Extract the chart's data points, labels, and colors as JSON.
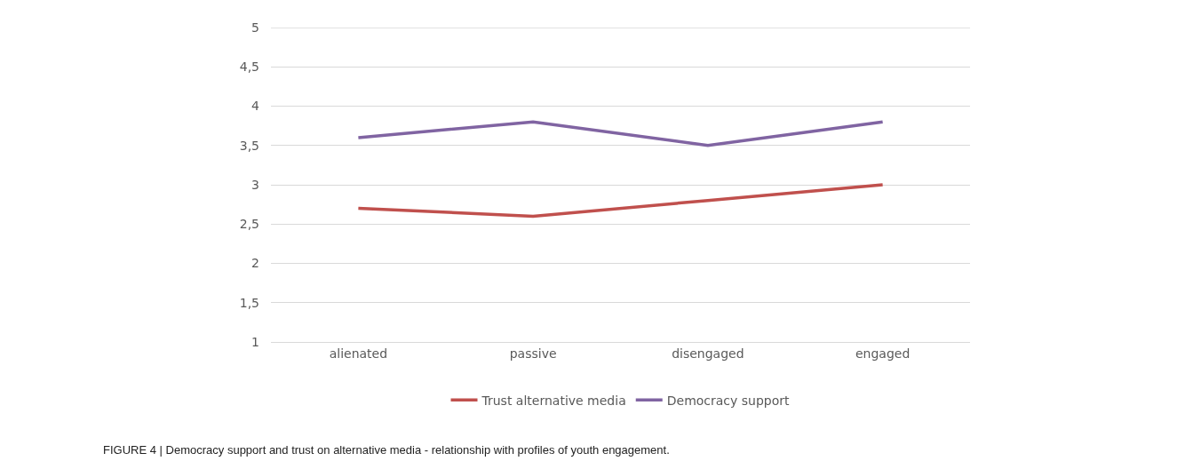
{
  "chart_data": {
    "type": "line",
    "categories": [
      "alienated",
      "passive",
      "disengaged",
      "engaged"
    ],
    "series": [
      {
        "name": "Trust alternative media",
        "color": "#c0504d",
        "values": [
          2.7,
          2.6,
          2.8,
          3.0
        ]
      },
      {
        "name": "Democracy support",
        "color": "#8064a2",
        "values": [
          3.6,
          3.8,
          3.5,
          3.8
        ]
      }
    ],
    "ylim": [
      1,
      5
    ],
    "yticks": [
      1,
      {
        "value": 1.5,
        "label": "1,5"
      },
      2,
      {
        "value": 2.5,
        "label": "2,5"
      },
      3,
      {
        "value": 3.5,
        "label": "3,5"
      },
      4,
      {
        "value": 4.5,
        "label": "4,5"
      },
      5
    ],
    "grid": "y",
    "legend": "bottom",
    "marker": "none",
    "line_style": "solid",
    "annotations": [
      "FIGURE 4 | Democracy support and trust on alternative media - relationship with profiles of youth engagement."
    ]
  }
}
